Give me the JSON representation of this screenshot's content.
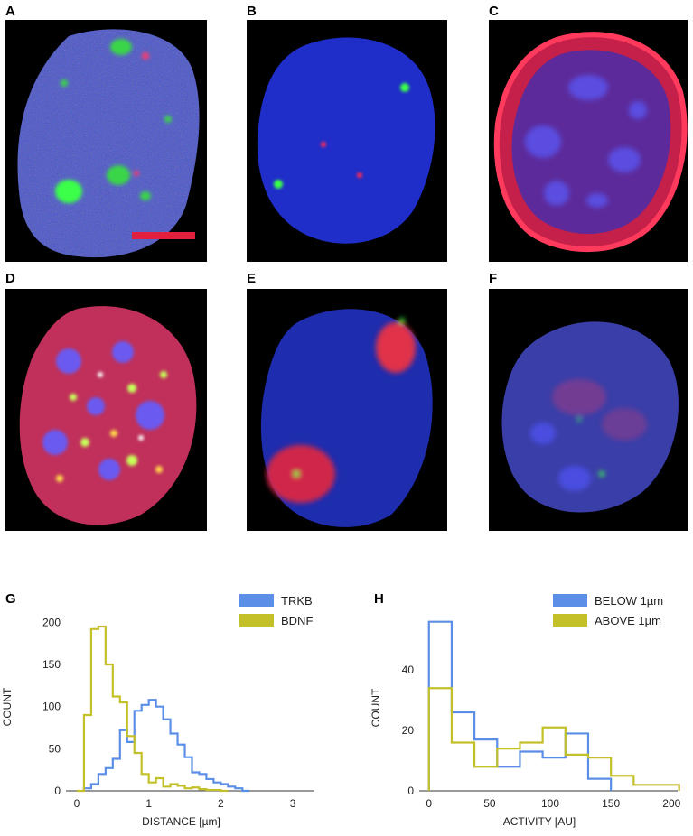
{
  "panels": {
    "A": "A",
    "B": "B",
    "C": "C",
    "D": "D",
    "E": "E",
    "F": "F",
    "G": "G",
    "H": "H"
  },
  "colors": {
    "nucleus_blue": "#2b3fd8",
    "green_spot": "#3bff4a",
    "red_stain": "#ff2a55",
    "scale_bar": "#e0203c",
    "series_blue": "#5b8ee6",
    "series_olive": "#c3c02a"
  },
  "chart_data": [
    {
      "type": "histogram",
      "panel": "G",
      "xlabel": "DISTANCE [µm]",
      "ylabel": "COUNT",
      "xlim": [
        -0.15,
        3.3
      ],
      "ylim": [
        0,
        210
      ],
      "xticks": [
        0,
        1,
        2,
        3
      ],
      "yticks": [
        0,
        50,
        100,
        150,
        200
      ],
      "legend_position": "top-right",
      "bin_width": 0.1,
      "series": [
        {
          "name": "TRKB",
          "color": "#5b8ee6",
          "x_start": 0.1,
          "values": [
            3,
            8,
            20,
            27,
            38,
            72,
            58,
            95,
            102,
            108,
            100,
            85,
            68,
            55,
            40,
            22,
            20,
            14,
            10,
            8,
            5,
            3,
            0
          ]
        },
        {
          "name": "BDNF",
          "color": "#c3c02a",
          "x_start": 0.0,
          "values": [
            0,
            90,
            192,
            195,
            150,
            112,
            105,
            65,
            45,
            20,
            10,
            15,
            5,
            8,
            6,
            3,
            4,
            2,
            1,
            1,
            0
          ]
        }
      ]
    },
    {
      "type": "histogram",
      "panel": "H",
      "xlabel": "ACTIVITY [AU]",
      "ylabel": "COUNT",
      "xlim": [
        -8,
        205
      ],
      "ylim": [
        0,
        58
      ],
      "xticks": [
        0,
        50,
        100,
        150,
        200
      ],
      "yticks": [
        0,
        20,
        40
      ],
      "legend_position": "top-right",
      "bin_width": 18.75,
      "series": [
        {
          "name": "BELOW 1µm",
          "color": "#5b8ee6",
          "x_start": 0,
          "values": [
            56,
            26,
            17,
            8,
            13,
            11,
            19,
            4
          ]
        },
        {
          "name": "ABOVE 1µm",
          "color": "#c3c02a",
          "x_start": 0,
          "values": [
            34,
            16,
            8,
            14,
            16,
            21,
            12,
            11,
            5,
            2,
            2
          ]
        }
      ]
    }
  ]
}
